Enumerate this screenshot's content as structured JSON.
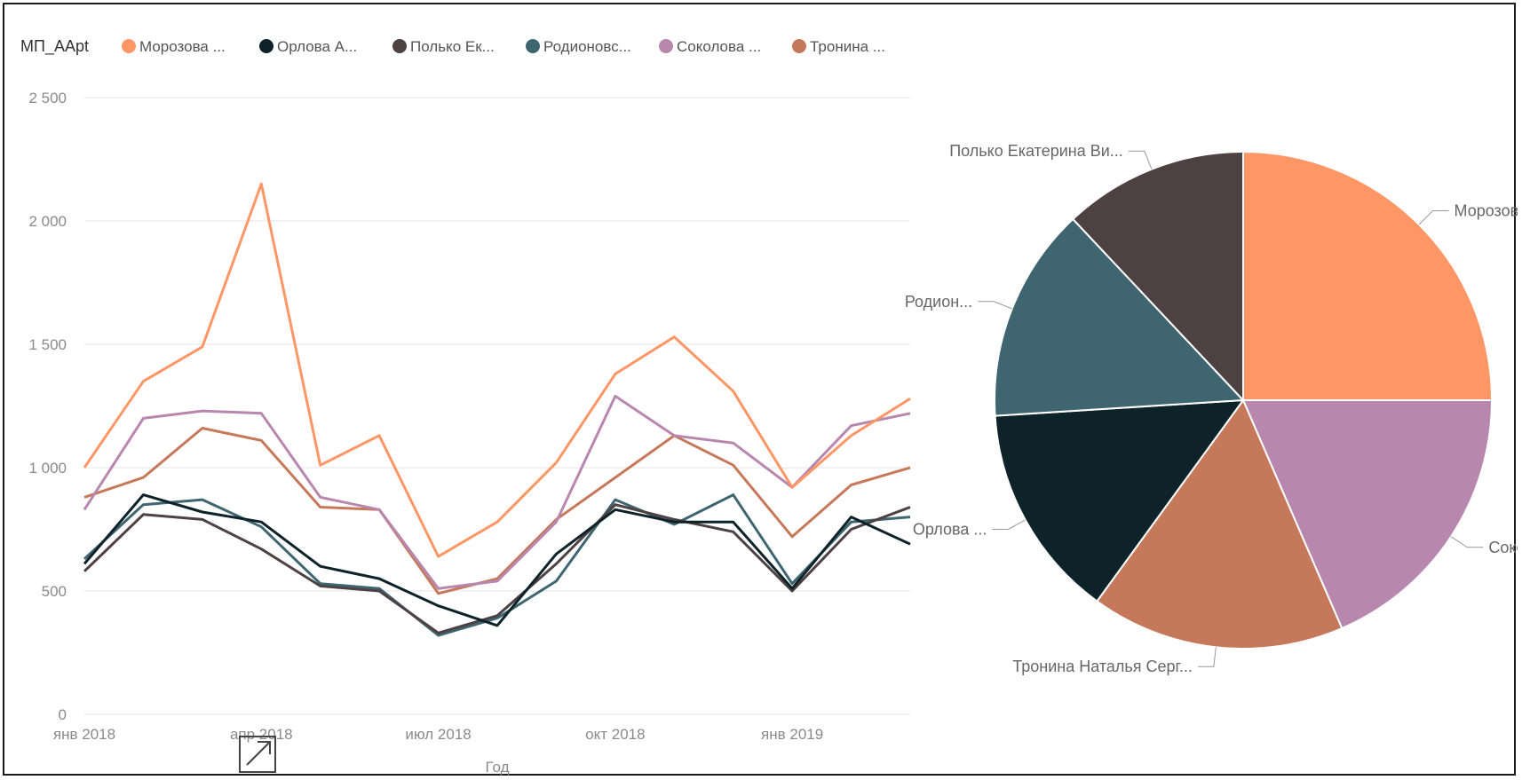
{
  "chart_data": [
    {
      "type": "line",
      "legend_title": "МП_AApt",
      "legend_position": "top-left",
      "xlabel": "Год",
      "ylim": [
        0,
        2500
      ],
      "yticks": [
        0,
        500,
        1000,
        1500,
        2000,
        2500
      ],
      "ytick_labels": [
        "0",
        "500",
        "1 000",
        "1 500",
        "2 000",
        "2 500"
      ],
      "x": [
        "2018-01",
        "2018-02",
        "2018-03",
        "2018-04",
        "2018-05",
        "2018-06",
        "2018-07",
        "2018-08",
        "2018-09",
        "2018-10",
        "2018-11",
        "2018-12",
        "2019-01",
        "2019-02",
        "2019-03"
      ],
      "xtick_labels": [
        {
          "label": "янв 2018",
          "index": 0
        },
        {
          "label": "апр 2018",
          "index": 3
        },
        {
          "label": "июл 2018",
          "index": 6
        },
        {
          "label": "окт 2018",
          "index": 9
        },
        {
          "label": "янв 2019",
          "index": 12
        }
      ],
      "grid": true,
      "series": [
        {
          "name": "Морозова ...",
          "color": "#FE9666",
          "values": [
            1000,
            1350,
            1490,
            2150,
            1010,
            1130,
            640,
            780,
            1020,
            1380,
            1530,
            1310,
            920,
            1130,
            1280
          ]
        },
        {
          "name": "Орлова А...",
          "color": "#0E2329",
          "values": [
            610,
            890,
            820,
            780,
            600,
            550,
            440,
            360,
            650,
            830,
            780,
            780,
            510,
            800,
            690
          ]
        },
        {
          "name": "Полько Ек...",
          "color": "#4D4144",
          "values": [
            580,
            810,
            790,
            670,
            520,
            500,
            330,
            400,
            610,
            850,
            790,
            740,
            500,
            750,
            840
          ]
        },
        {
          "name": "Родионовс...",
          "color": "#3F6670",
          "values": [
            630,
            850,
            870,
            760,
            530,
            510,
            320,
            390,
            540,
            870,
            770,
            890,
            530,
            780,
            800
          ]
        },
        {
          "name": "Соколова ...",
          "color": "#B887AD",
          "values": [
            830,
            1200,
            1230,
            1220,
            880,
            830,
            510,
            540,
            780,
            1290,
            1130,
            1100,
            920,
            1170,
            1220
          ]
        },
        {
          "name": "Тронина ...",
          "color": "#C6795A",
          "values": [
            880,
            960,
            1160,
            1110,
            840,
            830,
            490,
            550,
            790,
            960,
            1130,
            1010,
            720,
            930,
            1000
          ]
        }
      ]
    },
    {
      "type": "pie",
      "slices": [
        {
          "label": "Морозова Кристи...",
          "value": 25.0,
          "color": "#FE9666"
        },
        {
          "label": "Соколова ...",
          "value": 18.5,
          "color": "#B887AD"
        },
        {
          "label": "Тронина Наталья Серг...",
          "value": 16.5,
          "color": "#C6795A"
        },
        {
          "label": "Орлова ...",
          "value": 14.0,
          "color": "#0E2329"
        },
        {
          "label": "Родион...",
          "value": 14.0,
          "color": "#3F6670"
        },
        {
          "label": "Полько Екатерина Ви...",
          "value": 12.0,
          "color": "#4D4144"
        }
      ]
    }
  ]
}
